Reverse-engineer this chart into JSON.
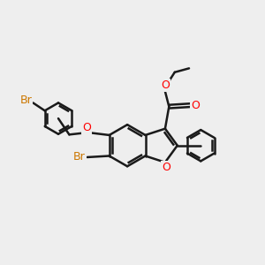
{
  "bg_color": "#eeeeee",
  "bond_color": "#1a1a1a",
  "bond_width": 1.8,
  "atom_colors": {
    "Br": "#cc7700",
    "O": "#ff0000",
    "C": "#1a1a1a"
  },
  "font_size_atom": 9.0,
  "figsize": [
    3.0,
    3.0
  ],
  "dpi": 100
}
